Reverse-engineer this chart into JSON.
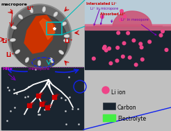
{
  "bg_color": "#c0c0c0",
  "top_right_bg": "#b8ccd8",
  "carbon_dark": "#1a2530",
  "electrolyte_green": "#44ee44",
  "li_ion_pink": "#ee4488",
  "li_ion_pink2": "#ff88bb",
  "macropore_label": "macropore",
  "mesopore_label": "mesopore",
  "hns_label": "HNs",
  "intercalated_label": "Intercalated Li⁺",
  "micropore_label": "Li⁺ in micropore",
  "absorbed_label": "Absorbed Li⁺",
  "mesopore_label2": "Li⁺ in mesopore",
  "li_ion_legend": "Li ion",
  "carbon_legend": "Carbon",
  "electrolyte_legend": "Electrolyte",
  "arrow_red": "#cc0000",
  "arrow_blue": "#1122ee",
  "arrow_purple": "#7700bb",
  "arrow_cyan": "#00bbbb",
  "text_red": "#cc0000",
  "text_purple": "#7700aa",
  "sphere_gray": "#888888",
  "sphere_dark": "#444444",
  "core_orange": "#cc3300",
  "core_orange2": "#ee5511",
  "hn_color": "#d8d8d8",
  "pink_interface": "#dd6688",
  "pink_bump": "#cc5577"
}
